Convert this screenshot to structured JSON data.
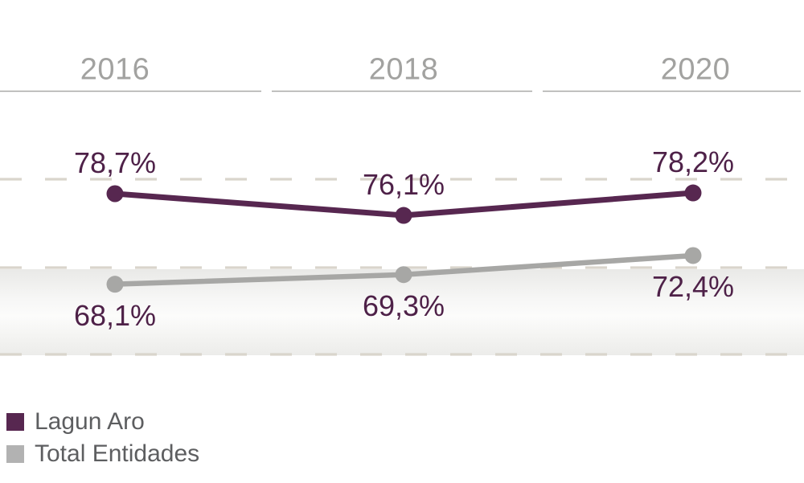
{
  "chart_data": {
    "type": "line",
    "categories": [
      "2016",
      "2018",
      "2020"
    ],
    "series": [
      {
        "name": "Lagun Aro",
        "values": [
          78.7,
          76.1,
          78.2
        ],
        "labels": [
          "78,7%",
          "76,1%",
          "78,2%"
        ],
        "color": "#572750"
      },
      {
        "name": "Total Entidades",
        "values": [
          68.1,
          69.3,
          72.4
        ],
        "labels": [
          "68,1%",
          "69,3%",
          "72,4%"
        ],
        "color": "#a7a7a5"
      }
    ],
    "title": "",
    "xlabel": "",
    "ylabel": "",
    "unit": "%",
    "decimal_separator": ",",
    "grid": "horizontal dashed gridlines",
    "legend_position": "bottom-left",
    "x_axis_style": "category labels above solid gray rules, one rule segment per category",
    "colors": {
      "value_label": "#4e2148",
      "axis_label": "#a2a2a0",
      "axis_line": "#a9a9a7",
      "gridline": "#d9d5cc",
      "legend_text": "#5d5e60",
      "legend_swatch_gray": "#b2b2b2",
      "band_gray": "#eaeae8",
      "background": "#ffffff"
    }
  }
}
